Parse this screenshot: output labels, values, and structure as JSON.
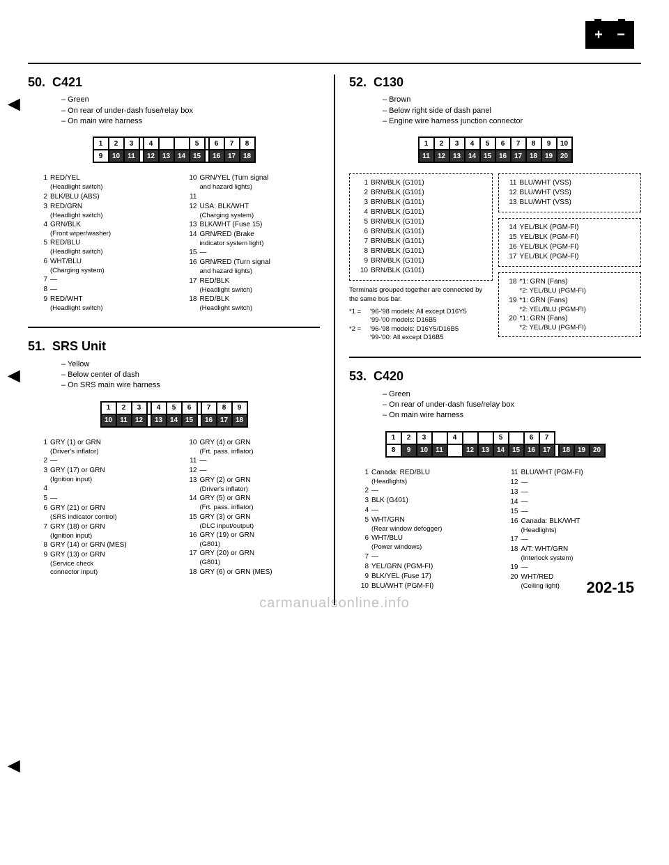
{
  "page_number": "202-15",
  "watermark": "carmanualsonline.info",
  "sections": {
    "s50": {
      "num": "50.",
      "title": "C421",
      "desc": [
        "– Green",
        "– On rear of under-dash fuse/relay box",
        "– On main wire harness"
      ],
      "pins_left": [
        {
          "n": "1",
          "t": "RED/YEL",
          "s": "(Headlight switch)"
        },
        {
          "n": "2",
          "t": "BLK/BLU (ABS)"
        },
        {
          "n": "3",
          "t": "RED/GRN",
          "s": "(Headlight switch)"
        },
        {
          "n": "4",
          "t": "GRN/BLK",
          "s": "(Front wiper/washer)"
        },
        {
          "n": "5",
          "t": "RED/BLU",
          "s": "(Headlight switch)"
        },
        {
          "n": "6",
          "t": "WHT/BLU",
          "s": "(Charging system)"
        },
        {
          "n": "7",
          "t": "—"
        },
        {
          "n": "8",
          "t": "—"
        },
        {
          "n": "9",
          "t": "RED/WHT",
          "s": "(Headlight switch)"
        }
      ],
      "pins_right": [
        {
          "n": "10",
          "t": "GRN/YEL (Turn signal",
          "s": "and hazard lights)"
        },
        {
          "n": "11",
          "t": ""
        },
        {
          "n": "12",
          "t": "USA: BLK/WHT",
          "s": "(Charging system)"
        },
        {
          "n": "13",
          "t": "BLK/WHT (Fuse 15)"
        },
        {
          "n": "14",
          "t": "GRN/RED (Brake",
          "s": "indicator system light)"
        },
        {
          "n": "15",
          "t": "—"
        },
        {
          "n": "16",
          "t": "GRN/RED (Turn signal",
          "s": "and hazard lights)"
        },
        {
          "n": "17",
          "t": "RED/BLK",
          "s": "(Headlight switch)"
        },
        {
          "n": "18",
          "t": "RED/BLK",
          "s": "(Headlight switch)"
        }
      ]
    },
    "s51": {
      "num": "51.",
      "title": "SRS Unit",
      "desc": [
        "– Yellow",
        "– Below center of dash",
        "– On SRS main wire harness"
      ],
      "pins_left": [
        {
          "n": "1",
          "t": "GRY (1) or GRN",
          "s": "(Driver's inflator)"
        },
        {
          "n": "2",
          "t": "—"
        },
        {
          "n": "3",
          "t": "GRY (17) or GRN",
          "s": "(Ignition input)"
        },
        {
          "n": "4",
          "t": ""
        },
        {
          "n": "5",
          "t": "—"
        },
        {
          "n": "6",
          "t": "GRY (21) or GRN",
          "s": "(SRS indicator control)"
        },
        {
          "n": "7",
          "t": "GRY (18) or GRN",
          "s": "(Ignition input)"
        },
        {
          "n": "8",
          "t": "GRY (14) or GRN (MES)"
        },
        {
          "n": "9",
          "t": "GRY (13) or GRN",
          "s": "(Service check",
          "s2": "connector input)"
        }
      ],
      "pins_right": [
        {
          "n": "10",
          "t": "GRY (4) or GRN",
          "s": "(Frt. pass. inflator)"
        },
        {
          "n": "11",
          "t": "—"
        },
        {
          "n": "12",
          "t": "—"
        },
        {
          "n": "13",
          "t": "GRY (2) or GRN",
          "s": "(Driver's inflator)"
        },
        {
          "n": "14",
          "t": "GRY (5) or GRN",
          "s": "(Frt. pass. inflator)"
        },
        {
          "n": "15",
          "t": "GRY (3) or GRN",
          "s": "(DLC input/output)"
        },
        {
          "n": "16",
          "t": "GRY (19) or GRN",
          "s": "(G801)"
        },
        {
          "n": "17",
          "t": "GRY (20) or GRN",
          "s": "(G801)"
        },
        {
          "n": "18",
          "t": "GRY (6) or GRN (MES)"
        }
      ]
    },
    "s52": {
      "num": "52.",
      "title": "C130",
      "desc": [
        "– Brown",
        "– Below right side of dash panel",
        "– Engine wire harness junction connector"
      ],
      "box1": [
        {
          "n": "1",
          "t": "BRN/BLK (G101)"
        },
        {
          "n": "2",
          "t": "BRN/BLK (G101)"
        },
        {
          "n": "3",
          "t": "BRN/BLK (G101)"
        },
        {
          "n": "4",
          "t": "BRN/BLK (G101)"
        },
        {
          "n": "5",
          "t": "BRN/BLK (G101)"
        },
        {
          "n": "6",
          "t": "BRN/BLK (G101)"
        },
        {
          "n": "7",
          "t": "BRN/BLK (G101)"
        },
        {
          "n": "8",
          "t": "BRN/BLK (G101)"
        },
        {
          "n": "9",
          "t": "BRN/BLK (G101)"
        },
        {
          "n": "10",
          "t": "BRN/BLK (G101)"
        }
      ],
      "box2a": [
        {
          "n": "11",
          "t": "BLU/WHT (VSS)"
        },
        {
          "n": "12",
          "t": "BLU/WHT (VSS)"
        },
        {
          "n": "13",
          "t": "BLU/WHT (VSS)"
        }
      ],
      "box2b": [
        {
          "n": "14",
          "t": "YEL/BLK (PGM-FI)"
        },
        {
          "n": "15",
          "t": "YEL/BLK (PGM-FI)"
        },
        {
          "n": "16",
          "t": "YEL/BLK (PGM-FI)"
        },
        {
          "n": "17",
          "t": "YEL/BLK (PGM-FI)"
        }
      ],
      "box2c": [
        {
          "n": "18",
          "t": "*1: GRN (Fans)",
          "s": "*2: YEL/BLU (PGM-FI)"
        },
        {
          "n": "19",
          "t": "*1: GRN (Fans)",
          "s": "*2: YEL/BLU (PGM-FI)"
        },
        {
          "n": "20",
          "t": "*1: GRN (Fans)",
          "s": "*2: YEL/BLU (PGM-FI)"
        }
      ],
      "note": "Terminals grouped together are connected by the same bus bar.",
      "footnotes": [
        {
          "l": "*1 =",
          "t": "'96-'98 models: All except D16Y5",
          "t2": "'99-'00 models: D16B5"
        },
        {
          "l": "*2 =",
          "t": "'96-'98 models: D16Y5/D16B5",
          "t2": "'99-'00: All except D16B5"
        }
      ]
    },
    "s53": {
      "num": "53.",
      "title": "C420",
      "desc": [
        "– Green",
        "– On rear of under-dash fuse/relay box",
        "– On main wire harness"
      ],
      "pins_left": [
        {
          "n": "1",
          "t": "Canada: RED/BLU",
          "s": "(Headlights)"
        },
        {
          "n": "2",
          "t": "—"
        },
        {
          "n": "3",
          "t": "BLK (G401)"
        },
        {
          "n": "4",
          "t": "—"
        },
        {
          "n": "5",
          "t": "WHT/GRN",
          "s": "(Rear window defogger)"
        },
        {
          "n": "6",
          "t": "WHT/BLU",
          "s": "(Power windows)"
        },
        {
          "n": "7",
          "t": "—"
        },
        {
          "n": "8",
          "t": "YEL/GRN (PGM-FI)"
        },
        {
          "n": "9",
          "t": "BLK/YEL (Fuse 17)"
        },
        {
          "n": "10",
          "t": "BLU/WHT (PGM-FI)"
        }
      ],
      "pins_right": [
        {
          "n": "11",
          "t": "BLU/WHT (PGM-FI)"
        },
        {
          "n": "12",
          "t": "—"
        },
        {
          "n": "13",
          "t": "—"
        },
        {
          "n": "14",
          "t": "—"
        },
        {
          "n": "15",
          "t": "—"
        },
        {
          "n": "16",
          "t": "Canada: BLK/WHT",
          "s": "(Headlights)"
        },
        {
          "n": "17",
          "t": "—"
        },
        {
          "n": "18",
          "t": "A/T: WHT/GRN",
          "s": "(Interlock system)"
        },
        {
          "n": "19",
          "t": "—"
        },
        {
          "n": "20",
          "t": "WHT/RED",
          "s": "(Ceiling light)"
        }
      ]
    }
  }
}
